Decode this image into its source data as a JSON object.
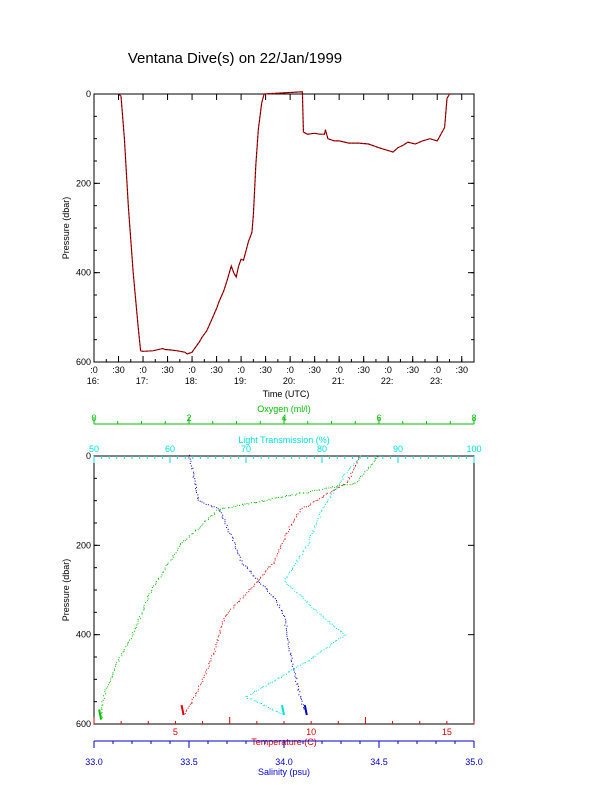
{
  "title": "Ventana Dive(s) on 22/Jan/1999",
  "colors": {
    "axis": "#000000",
    "trace_black": "#000000",
    "trace_red": "#d00000",
    "temperature": "#e00000",
    "salinity": "#0000d0",
    "oxygen": "#00c000",
    "light": "#00e0e0"
  },
  "chart_data": [
    {
      "type": "line",
      "name": "dive-profile",
      "xlabel": "Time (UTC)",
      "ylabel": "Pressure (dbar)",
      "ylim": [
        600,
        0
      ],
      "xlim": [
        16.0,
        23.75
      ],
      "y_ticks": [
        "0",
        "200",
        "400",
        "600"
      ],
      "x_ticks": [
        {
          "t": 16.0,
          "top": ":0",
          "bottom": "16:"
        },
        {
          "t": 16.5,
          "top": ":30",
          "bottom": ""
        },
        {
          "t": 17.0,
          "top": ":0",
          "bottom": "17:"
        },
        {
          "t": 17.5,
          "top": ":30",
          "bottom": ""
        },
        {
          "t": 18.0,
          "top": ":0",
          "bottom": "18:"
        },
        {
          "t": 18.5,
          "top": ":30",
          "bottom": ""
        },
        {
          "t": 19.0,
          "top": ":0",
          "bottom": "19:"
        },
        {
          "t": 19.5,
          "top": ":30",
          "bottom": ""
        },
        {
          "t": 20.0,
          "top": ":0",
          "bottom": "20:"
        },
        {
          "t": 20.5,
          "top": ":30",
          "bottom": ""
        },
        {
          "t": 21.0,
          "top": ":0",
          "bottom": "21:"
        },
        {
          "t": 21.5,
          "top": ":30",
          "bottom": ""
        },
        {
          "t": 22.0,
          "top": ":0",
          "bottom": "22:"
        },
        {
          "t": 22.5,
          "top": ":30",
          "bottom": ""
        },
        {
          "t": 23.0,
          "top": ":0",
          "bottom": "23:"
        },
        {
          "t": 23.5,
          "top": ":30",
          "bottom": ""
        }
      ],
      "series": [
        {
          "x": [
            16.5,
            16.55,
            16.62,
            16.7,
            16.8,
            16.9,
            16.95,
            17.0,
            17.2,
            17.4,
            17.45,
            17.55,
            17.7,
            17.85,
            17.9,
            18.0,
            18.05,
            18.15,
            18.2,
            18.3,
            18.4,
            18.5,
            18.55,
            18.65,
            18.72,
            18.8,
            18.85,
            18.9,
            18.95,
            19.0,
            19.05,
            19.15,
            19.22,
            19.25,
            19.3,
            19.35,
            19.42,
            19.47,
            20.25,
            20.27,
            20.35,
            20.5,
            20.6,
            20.7,
            20.72,
            20.77,
            20.9,
            21.0,
            21.2,
            21.4,
            21.6,
            21.8,
            21.95,
            22.1,
            22.2,
            22.3,
            22.4,
            22.55,
            22.7,
            22.85,
            23.0,
            23.05,
            23.15,
            23.2,
            23.25
          ],
          "y": [
            0,
            5,
            100,
            250,
            400,
            520,
            575,
            576,
            575,
            570,
            572,
            573,
            575,
            578,
            582,
            578,
            570,
            555,
            545,
            530,
            505,
            480,
            465,
            440,
            415,
            385,
            400,
            410,
            385,
            370,
            372,
            330,
            310,
            270,
            160,
            80,
            20,
            0,
            -5,
            85,
            90,
            88,
            90,
            90,
            80,
            100,
            105,
            105,
            110,
            110,
            112,
            120,
            125,
            130,
            120,
            115,
            108,
            112,
            105,
            100,
            105,
            95,
            75,
            10,
            0
          ]
        }
      ]
    },
    {
      "type": "scatter",
      "name": "property-profiles",
      "ylabel": "Pressure (dbar)",
      "ylim": [
        600,
        0
      ],
      "y_ticks": [
        "0",
        "200",
        "400",
        "600"
      ],
      "axes": [
        {
          "label": "Temperature (C)",
          "position": "bottom",
          "range": [
            2.0,
            16.0
          ],
          "ticks": [
            "5",
            "10",
            "15"
          ]
        },
        {
          "label": "Salinity (psu)",
          "position": "bottom",
          "range": [
            33.0,
            35.0
          ],
          "ticks": [
            "33.0",
            "33.5",
            "34.0",
            "34.5",
            "35.0"
          ]
        },
        {
          "label": "Oxygen (ml/l)",
          "position": "top",
          "range": [
            0,
            8
          ],
          "ticks": [
            "0",
            "2",
            "4",
            "6",
            "8"
          ]
        },
        {
          "label": "Light Transmission (%)",
          "position": "top",
          "range": [
            50,
            100
          ],
          "ticks": [
            "50",
            "60",
            "70",
            "80",
            "90",
            "100"
          ]
        }
      ],
      "series": [
        {
          "name": "Temperature (C)",
          "x": [
            11.8,
            11.3,
            9.6,
            9.2,
            8.6,
            7.4,
            6.8,
            6.4,
            6.0,
            5.6,
            5.3
          ],
          "y": [
            0,
            60,
            120,
            160,
            240,
            320,
            360,
            440,
            500,
            550,
            580
          ]
        },
        {
          "name": "Salinity (psu)",
          "x": [
            33.5,
            33.55,
            33.66,
            33.7,
            33.78,
            33.95,
            34.0,
            34.03,
            34.06,
            34.09,
            34.12
          ],
          "y": [
            0,
            100,
            120,
            160,
            240,
            320,
            360,
            440,
            500,
            550,
            580
          ]
        },
        {
          "name": "Oxygen (ml/l)",
          "x": [
            6.0,
            5.5,
            2.6,
            1.8,
            1.2,
            0.8,
            0.5,
            0.25,
            0.15,
            0.15
          ],
          "y": [
            0,
            60,
            120,
            200,
            300,
            400,
            460,
            520,
            560,
            590
          ]
        },
        {
          "name": "Light Transmission (%)",
          "x": [
            85,
            83,
            80,
            78,
            75,
            80,
            83,
            78,
            70,
            75
          ],
          "y": [
            0,
            40,
            120,
            200,
            280,
            360,
            400,
            460,
            540,
            580
          ]
        }
      ]
    }
  ]
}
